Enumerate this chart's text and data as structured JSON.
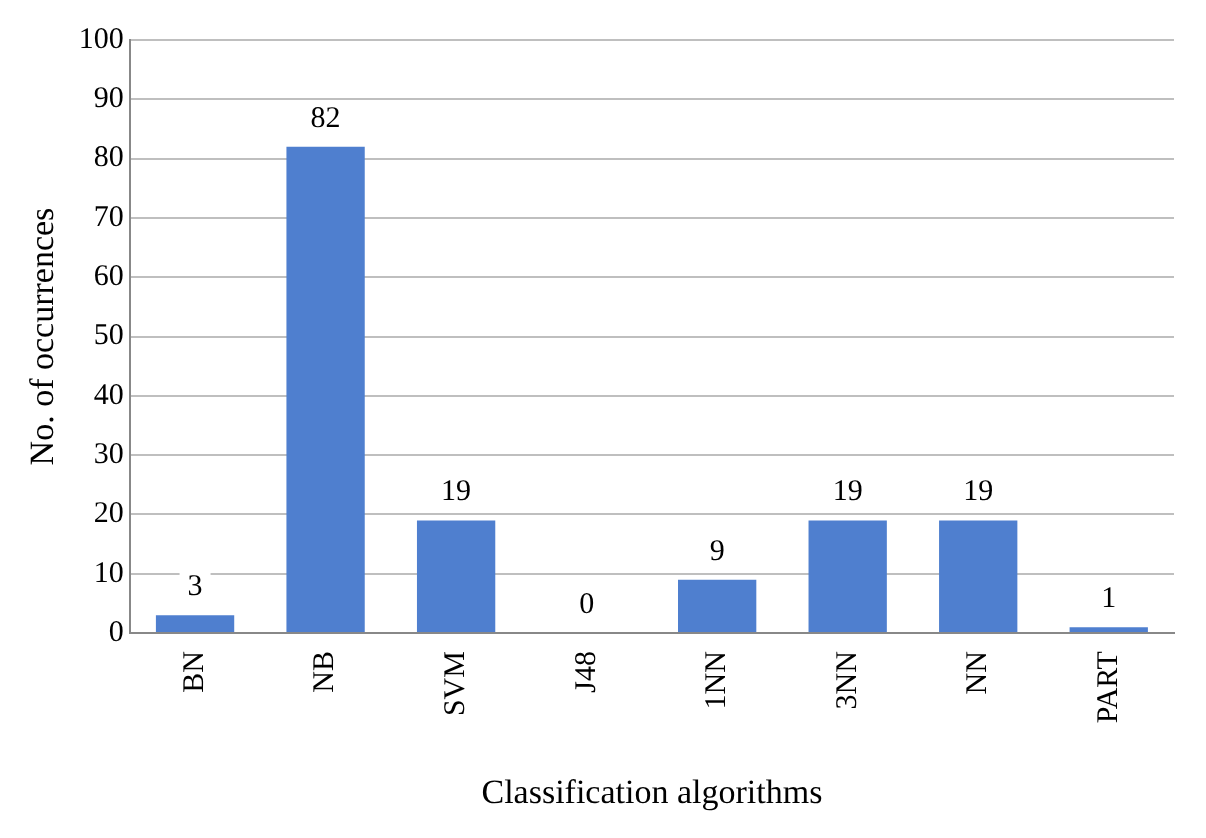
{
  "chart_data": {
    "type": "bar",
    "xlabel": "Classification algorithms",
    "ylabel": "No. of occurrences",
    "categories": [
      "BN",
      "NB",
      "SVM",
      "J48",
      "1NN",
      "3NN",
      "NN",
      "PART"
    ],
    "values": [
      3,
      82,
      19,
      0,
      9,
      19,
      19,
      1
    ],
    "color": "#4f7fcf",
    "ylim": [
      0,
      100
    ],
    "yticks": [
      0,
      10,
      20,
      30,
      40,
      50,
      60,
      70,
      80,
      90,
      100
    ],
    "grid": "y",
    "legend": false,
    "data_labels": true
  }
}
